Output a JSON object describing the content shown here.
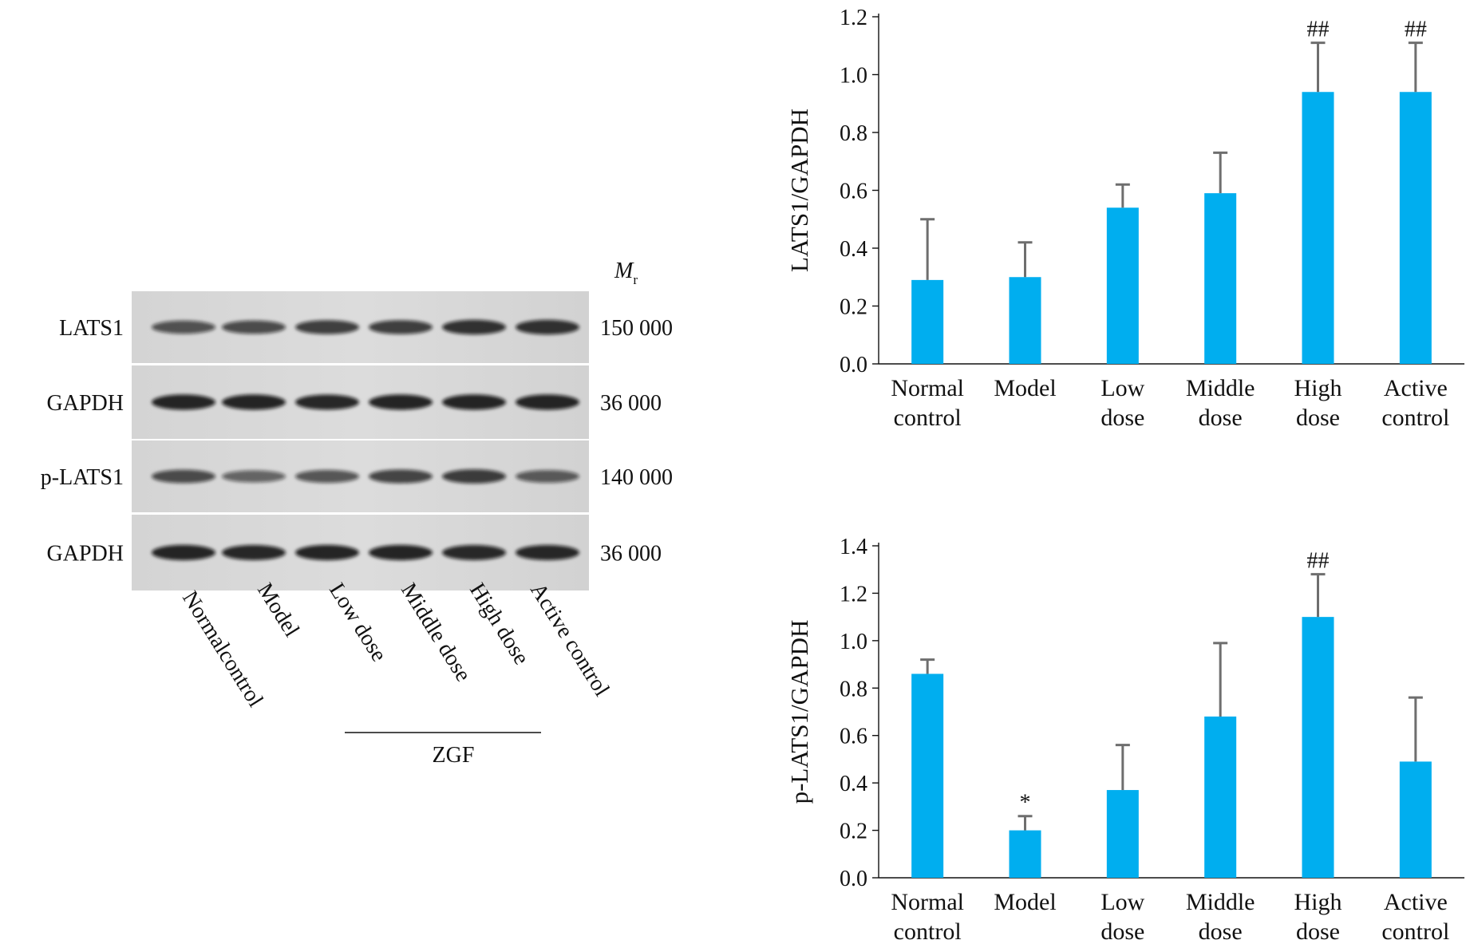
{
  "western_blot": {
    "mr_label": "M",
    "mr_subscript": "r",
    "rows": [
      {
        "label": "LATS1",
        "mw": "150 000",
        "intensity": [
          0.55,
          0.6,
          0.7,
          0.7,
          0.8,
          0.8
        ]
      },
      {
        "label": "GAPDH",
        "mw": "36 000",
        "intensity": [
          0.9,
          0.9,
          0.88,
          0.9,
          0.9,
          0.9
        ]
      },
      {
        "label": "p-LATS1",
        "mw": "140 000",
        "intensity": [
          0.6,
          0.4,
          0.52,
          0.65,
          0.72,
          0.48
        ]
      },
      {
        "label": "GAPDH",
        "mw": "36 000",
        "intensity": [
          0.9,
          0.88,
          0.9,
          0.9,
          0.86,
          0.88
        ]
      }
    ],
    "lanes": [
      "Normalcontrol",
      "Model",
      "Low dose",
      "Middle dose",
      "High dose",
      "Active control"
    ],
    "group_label": "ZGF"
  },
  "chart_data": [
    {
      "type": "bar",
      "categories": [
        "Normal control",
        "Model",
        "Low dose",
        "Middle dose",
        "High dose",
        "Active control"
      ],
      "values": [
        0.29,
        0.3,
        0.54,
        0.59,
        0.94,
        0.94
      ],
      "errors": [
        0.21,
        0.12,
        0.08,
        0.14,
        0.17,
        0.17
      ],
      "annotations": [
        "",
        "",
        "",
        "",
        "##",
        "##"
      ],
      "title": "",
      "xlabel": "",
      "ylabel": "LATS1/GAPDH",
      "ylim": [
        0,
        1.2
      ],
      "yticks": [
        "0.0",
        "0.2",
        "0.4",
        "0.6",
        "0.8",
        "1.0",
        "1.2"
      ],
      "bar_color": "#00aeef",
      "error_color": "#6e6e6e",
      "grid": false
    },
    {
      "type": "bar",
      "categories": [
        "Normal control",
        "Model",
        "Low dose",
        "Middle dose",
        "High dose",
        "Active control"
      ],
      "values": [
        0.86,
        0.2,
        0.37,
        0.68,
        1.1,
        0.49
      ],
      "errors": [
        0.06,
        0.06,
        0.19,
        0.31,
        0.18,
        0.27
      ],
      "annotations": [
        "",
        "*",
        "",
        "",
        "##",
        ""
      ],
      "title": "",
      "xlabel": "",
      "ylabel": "p-LATS1/GAPDH",
      "ylim": [
        0,
        1.4
      ],
      "yticks": [
        "0.0",
        "0.2",
        "0.4",
        "0.6",
        "0.8",
        "1.0",
        "1.2",
        "1.4"
      ],
      "bar_color": "#00aeef",
      "error_color": "#6e6e6e",
      "grid": false
    }
  ]
}
